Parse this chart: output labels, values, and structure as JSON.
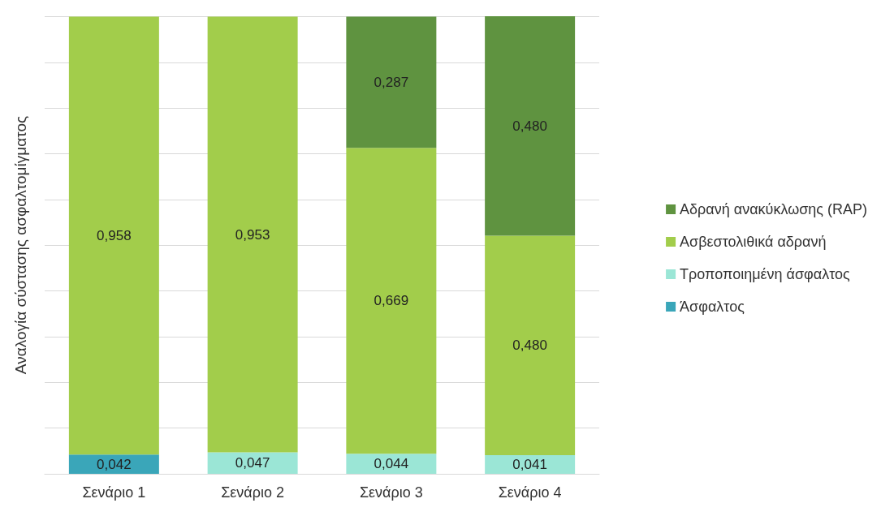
{
  "chart_data": {
    "type": "bar",
    "stacked": true,
    "ylabel": "Αναλογία σύστασης ασφαλτομίγματος",
    "categories": [
      "Σενάριο 1",
      "Σενάριο 2",
      "Σενάριο 3",
      "Σενάριο 4"
    ],
    "series": [
      {
        "name": "Άσφαλτος",
        "color": "#3aa6b9",
        "values": [
          0.042,
          null,
          null,
          null
        ],
        "value_labels": [
          "0,042",
          null,
          null,
          null
        ]
      },
      {
        "name": "Τροποποιημένη άσφαλτος",
        "color": "#9be6d6",
        "values": [
          null,
          0.047,
          0.044,
          0.041
        ],
        "value_labels": [
          null,
          "0,047",
          "0,044",
          "0,041"
        ]
      },
      {
        "name": "Ασβεστολιθικά αδρανή",
        "color": "#a2cd4b",
        "values": [
          0.958,
          0.953,
          0.669,
          0.48
        ],
        "value_labels": [
          "0,958",
          "0,953",
          "0,669",
          "0,480"
        ]
      },
      {
        "name": "Αδρανή ανακύκλωσης (RAP)",
        "color": "#5f9340",
        "values": [
          null,
          null,
          0.287,
          0.48
        ],
        "value_labels": [
          null,
          null,
          "0,287",
          "0,480"
        ]
      }
    ],
    "ylim": [
      0,
      1.001
    ],
    "yticks": [
      {
        "value": 0,
        "label": null
      },
      {
        "value": 0.1,
        "label": null
      },
      {
        "value": 0.2,
        "label": null
      },
      {
        "value": 0.3,
        "label": null
      },
      {
        "value": 0.4,
        "label": null
      },
      {
        "value": 0.5,
        "label": null
      },
      {
        "value": 0.6,
        "label": null
      },
      {
        "value": 0.7,
        "label": null
      },
      {
        "value": 0.8,
        "label": null
      },
      {
        "value": 0.9,
        "label": null
      },
      {
        "value": 1,
        "label": null
      }
    ],
    "tick_labels": "x",
    "grid": "y",
    "legend": "right"
  }
}
